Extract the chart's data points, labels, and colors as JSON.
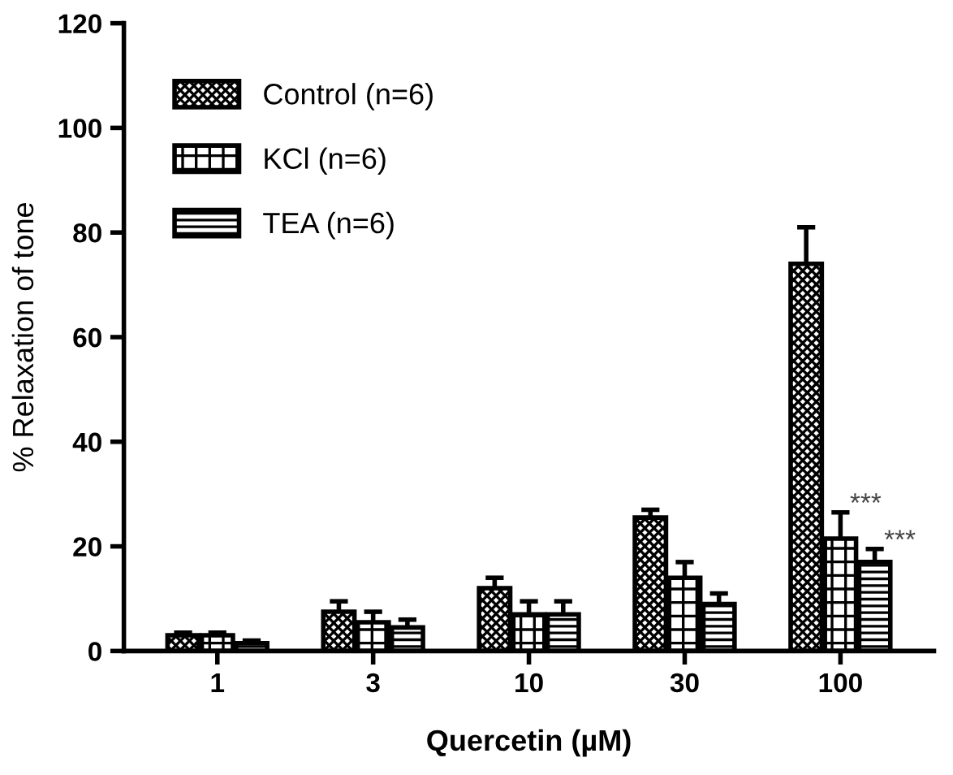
{
  "chart_data": {
    "type": "bar",
    "xlabel": "Quercetin (µM)",
    "ylabel": "% Relaxation of tone",
    "categories": [
      "1",
      "3",
      "10",
      "30",
      "100"
    ],
    "series": [
      {
        "name": "Control (n=6)",
        "color": "#000000",
        "values": [
          3,
          7.5,
          12,
          25.5,
          74
        ],
        "errors": [
          0.5,
          2,
          2,
          1.5,
          7
        ]
      },
      {
        "name": "KCl (n=6)",
        "color": "#000000",
        "values": [
          3,
          5.5,
          7,
          14,
          21.5
        ],
        "errors": [
          0.5,
          2,
          2.5,
          3,
          5
        ]
      },
      {
        "name": "TEA (n=6)",
        "color": "#000000",
        "values": [
          1.5,
          4.5,
          7,
          9,
          17
        ],
        "errors": [
          0.5,
          1.5,
          2.5,
          2,
          2.5
        ]
      }
    ],
    "annotations": [
      "***",
      "***"
    ],
    "ylim": [
      0,
      120
    ],
    "yticks": [
      0,
      20,
      40,
      60,
      80,
      100,
      120
    ],
    "legend": "top left",
    "grid": false
  }
}
